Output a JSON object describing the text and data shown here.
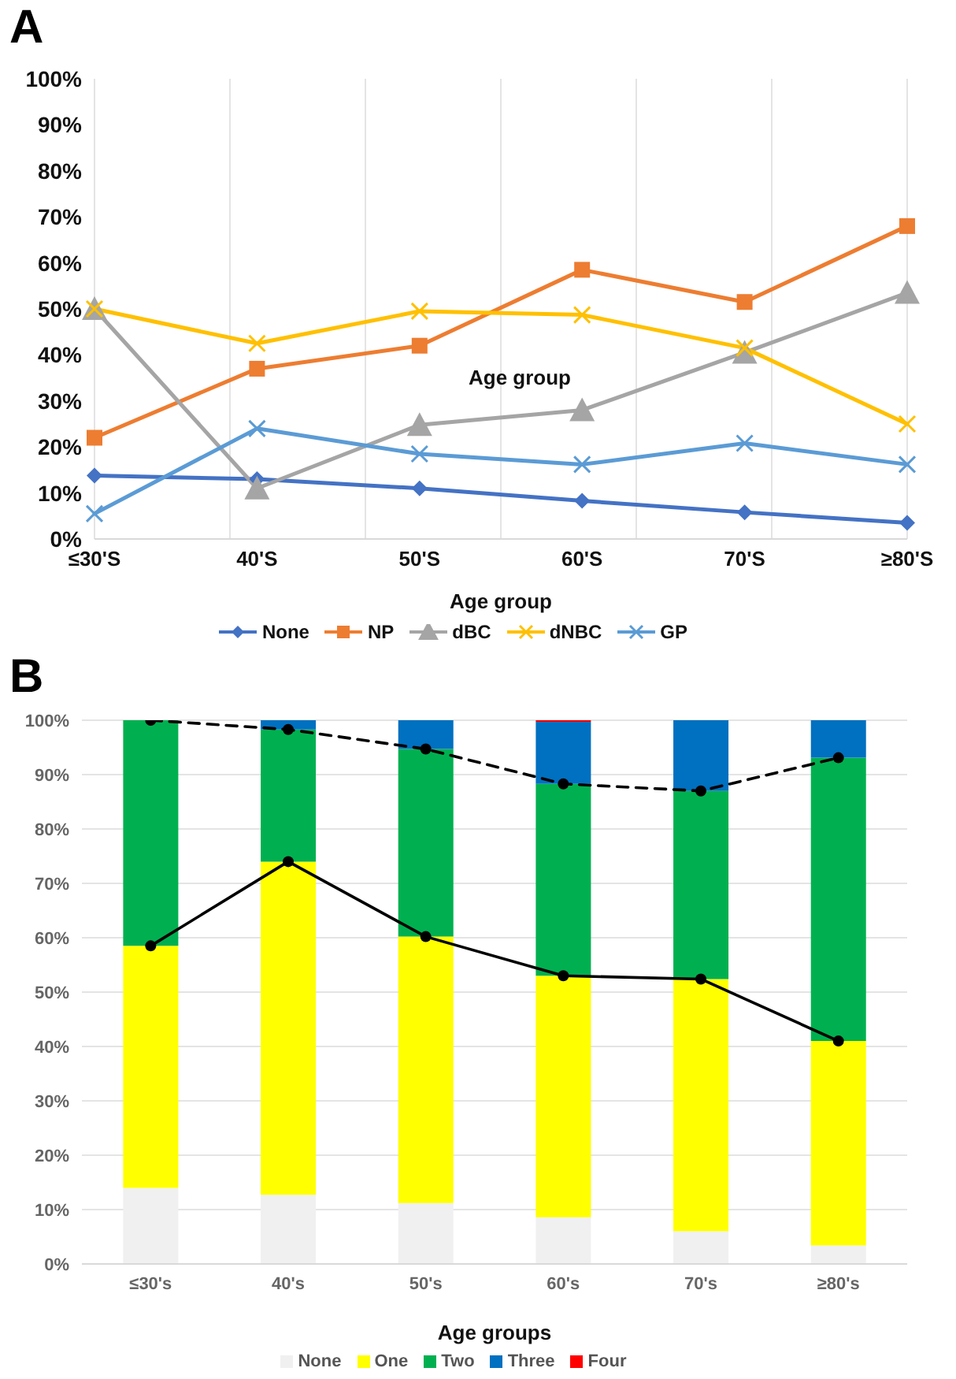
{
  "chart_data": [
    {
      "type": "line",
      "title": "A",
      "xlabel": "Age group",
      "annotations": [
        "Age group"
      ],
      "categories": [
        "≤30'S",
        "40'S",
        "50'S",
        "60'S",
        "70'S",
        "≥80'S"
      ],
      "series": [
        {
          "name": "None",
          "color": "#4472c4",
          "marker": "diamond",
          "values": [
            13.8,
            13,
            11,
            8.3,
            5.8,
            3.5
          ]
        },
        {
          "name": "NP",
          "color": "#ed7d31",
          "marker": "square",
          "values": [
            22,
            37,
            42,
            58.5,
            51.5,
            68
          ]
        },
        {
          "name": "dBC",
          "color": "#a5a5a5",
          "marker": "triangle",
          "values": [
            50,
            11,
            24.8,
            28,
            40.5,
            53.5
          ]
        },
        {
          "name": "dNBC",
          "color": "#ffc000",
          "marker": "cross",
          "values": [
            50,
            42.5,
            49.5,
            48.7,
            41.5,
            25
          ]
        },
        {
          "name": "GP",
          "color": "#5b9bd5",
          "marker": "cross",
          "values": [
            5.5,
            24,
            18.5,
            16.2,
            20.8,
            16.2
          ]
        }
      ],
      "ylim": [
        0,
        100
      ],
      "yticks": [
        {
          "value": 0,
          "label": "0%"
        },
        {
          "value": 10,
          "label": "10%"
        },
        {
          "value": 20,
          "label": "20%"
        },
        {
          "value": 30,
          "label": "30%"
        },
        {
          "value": 40,
          "label": "40%"
        },
        {
          "value": 50,
          "label": "50%"
        },
        {
          "value": 60,
          "label": "60%"
        },
        {
          "value": 70,
          "label": "70%"
        },
        {
          "value": 80,
          "label": "80%"
        },
        {
          "value": 90,
          "label": "90%"
        },
        {
          "value": 100,
          "label": "100%"
        }
      ],
      "grid": "x",
      "legend": "bottom"
    },
    {
      "type": "bar",
      "title": "B",
      "xlabel": "Age groups",
      "stacked": true,
      "categories": [
        "≤30's",
        "40's",
        "50's",
        "60's",
        "70's",
        "≥80's"
      ],
      "series": [
        {
          "name": "None",
          "color": "#f0f0f0",
          "values": [
            14,
            12.7,
            11.2,
            8.6,
            6,
            3.4
          ]
        },
        {
          "name": "One",
          "color": "#ffff00",
          "values": [
            44.5,
            61.3,
            49,
            44.4,
            46.4,
            37.6
          ]
        },
        {
          "name": "Two",
          "color": "#00b050",
          "values": [
            41.5,
            24.3,
            34.5,
            35.3,
            34.6,
            52.1
          ]
        },
        {
          "name": "Three",
          "color": "#0070c0",
          "values": [
            0,
            1.7,
            5.3,
            11.4,
            13,
            6.9
          ]
        },
        {
          "name": "Four",
          "color": "#ff0000",
          "values": [
            0,
            0,
            0,
            0.3,
            0,
            0
          ]
        },
        {
          "type": "line",
          "color": "#000000",
          "marker": "circle",
          "line_style": "solid",
          "values": [
            58.5,
            74,
            60.2,
            53,
            52.4,
            41
          ]
        },
        {
          "type": "line",
          "color": "#000000",
          "marker": "circle",
          "line_style": "dashed",
          "values": [
            100,
            98.3,
            94.7,
            88.3,
            87,
            93.1
          ]
        }
      ],
      "ylim": [
        0,
        100
      ],
      "yticks": [
        {
          "value": 0,
          "label": "0%"
        },
        {
          "value": 10,
          "label": "10%"
        },
        {
          "value": 20,
          "label": "20%"
        },
        {
          "value": 30,
          "label": "30%"
        },
        {
          "value": 40,
          "label": "40%"
        },
        {
          "value": 50,
          "label": "50%"
        },
        {
          "value": 60,
          "label": "60%"
        },
        {
          "value": 70,
          "label": "70%"
        },
        {
          "value": 80,
          "label": "80%"
        },
        {
          "value": 90,
          "label": "90%"
        },
        {
          "value": 100,
          "label": "100%"
        }
      ],
      "grid": "y",
      "legend": "bottom"
    }
  ]
}
